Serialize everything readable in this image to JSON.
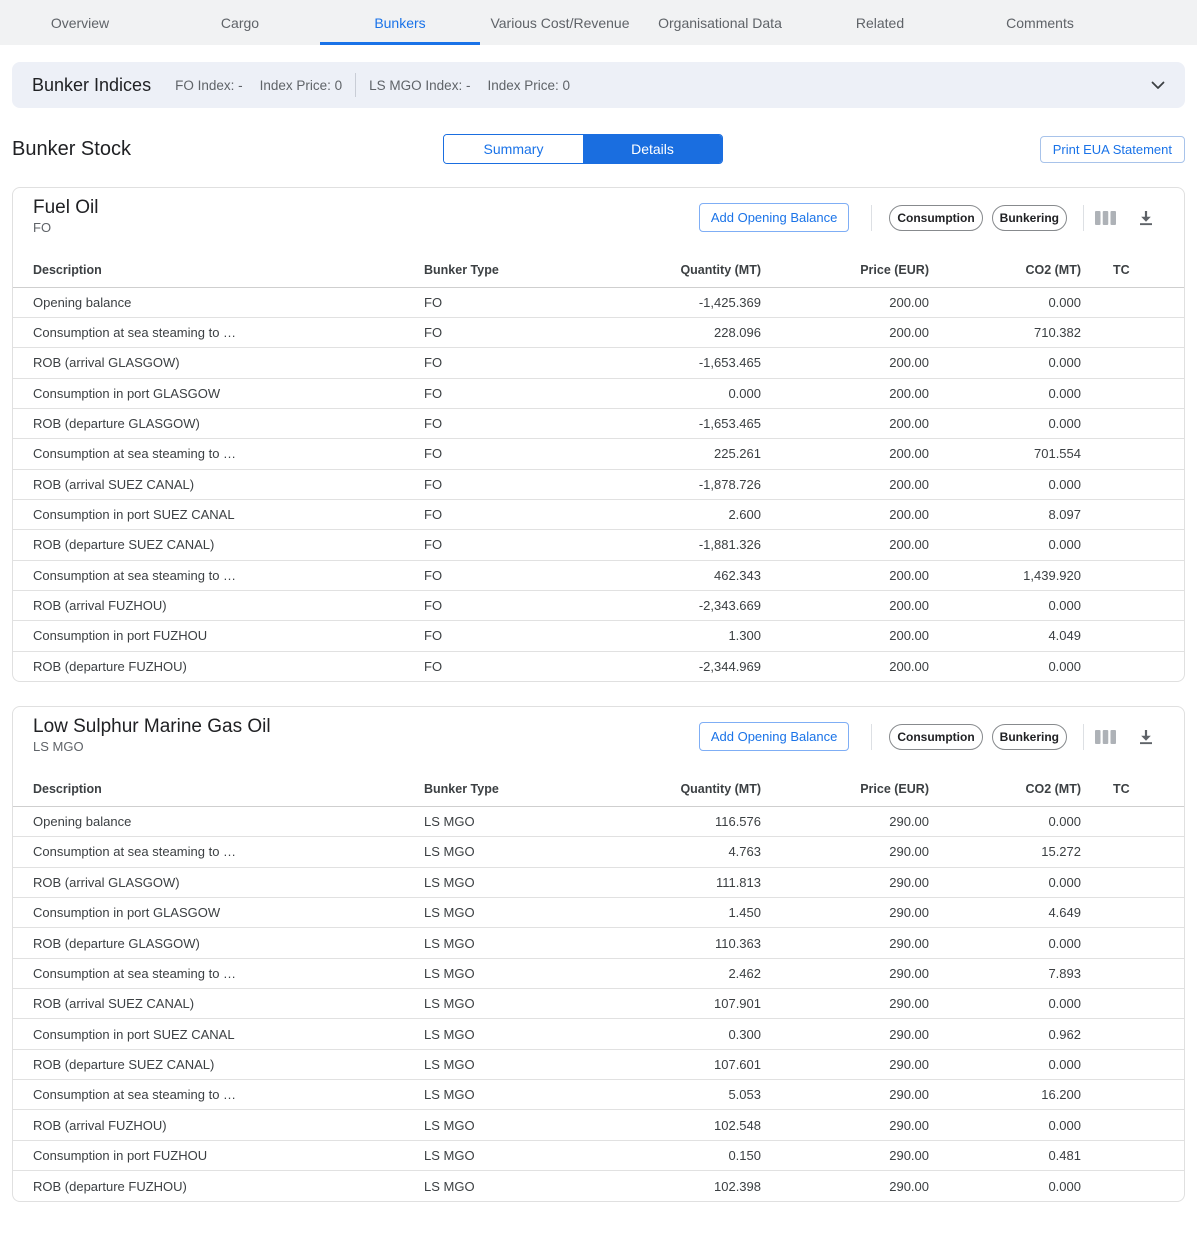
{
  "colors": {
    "accent": "#1a73e8",
    "details_fill": "#1a6ee0"
  },
  "tabs": [
    {
      "label": "Overview",
      "active": false
    },
    {
      "label": "Cargo",
      "active": false
    },
    {
      "label": "Bunkers",
      "active": true
    },
    {
      "label": "Various Cost/Revenue",
      "active": false
    },
    {
      "label": "Organisational Data",
      "active": false
    },
    {
      "label": "Related",
      "active": false
    },
    {
      "label": "Comments",
      "active": false
    }
  ],
  "indices": {
    "title": "Bunker Indices",
    "fo_index": "FO Index: -",
    "fo_price": "Index Price: 0",
    "mgo_index": "LS MGO Index: -",
    "mgo_price": "Index Price: 0"
  },
  "stock": {
    "title": "Bunker Stock",
    "summary_label": "Summary",
    "details_label": "Details",
    "selected": "Details",
    "print_label": "Print EUA Statement"
  },
  "columns": [
    "Description",
    "Bunker Type",
    "Quantity (MT)",
    "Price (EUR)",
    "CO2 (MT)",
    "TC"
  ],
  "cards": [
    {
      "title": "Fuel Oil",
      "subtitle": "FO",
      "add_button": "Add Opening Balance",
      "consumption_button": "Consumption",
      "bunkering_button": "Bunkering",
      "rows": [
        [
          "Opening balance",
          "FO",
          "-1,425.369",
          "200.00",
          "0.000",
          ""
        ],
        [
          "Consumption at sea steaming to …",
          "FO",
          "228.096",
          "200.00",
          "710.382",
          ""
        ],
        [
          "ROB (arrival GLASGOW)",
          "FO",
          "-1,653.465",
          "200.00",
          "0.000",
          ""
        ],
        [
          "Consumption in port GLASGOW",
          "FO",
          "0.000",
          "200.00",
          "0.000",
          ""
        ],
        [
          "ROB (departure GLASGOW)",
          "FO",
          "-1,653.465",
          "200.00",
          "0.000",
          ""
        ],
        [
          "Consumption at sea steaming to …",
          "FO",
          "225.261",
          "200.00",
          "701.554",
          ""
        ],
        [
          "ROB (arrival SUEZ CANAL)",
          "FO",
          "-1,878.726",
          "200.00",
          "0.000",
          ""
        ],
        [
          "Consumption in port SUEZ CANAL",
          "FO",
          "2.600",
          "200.00",
          "8.097",
          ""
        ],
        [
          "ROB (departure SUEZ CANAL)",
          "FO",
          "-1,881.326",
          "200.00",
          "0.000",
          ""
        ],
        [
          "Consumption at sea steaming to …",
          "FO",
          "462.343",
          "200.00",
          "1,439.920",
          ""
        ],
        [
          "ROB (arrival FUZHOU)",
          "FO",
          "-2,343.669",
          "200.00",
          "0.000",
          ""
        ],
        [
          "Consumption in port FUZHOU",
          "FO",
          "1.300",
          "200.00",
          "4.049",
          ""
        ],
        [
          "ROB (departure FUZHOU)",
          "FO",
          "-2,344.969",
          "200.00",
          "0.000",
          ""
        ]
      ]
    },
    {
      "title": "Low Sulphur Marine Gas Oil",
      "subtitle": "LS MGO",
      "add_button": "Add Opening Balance",
      "consumption_button": "Consumption",
      "bunkering_button": "Bunkering",
      "rows": [
        [
          "Opening balance",
          "LS MGO",
          "116.576",
          "290.00",
          "0.000",
          ""
        ],
        [
          "Consumption at sea steaming to …",
          "LS MGO",
          "4.763",
          "290.00",
          "15.272",
          ""
        ],
        [
          "ROB (arrival GLASGOW)",
          "LS MGO",
          "111.813",
          "290.00",
          "0.000",
          ""
        ],
        [
          "Consumption in port GLASGOW",
          "LS MGO",
          "1.450",
          "290.00",
          "4.649",
          ""
        ],
        [
          "ROB (departure GLASGOW)",
          "LS MGO",
          "110.363",
          "290.00",
          "0.000",
          ""
        ],
        [
          "Consumption at sea steaming to …",
          "LS MGO",
          "2.462",
          "290.00",
          "7.893",
          ""
        ],
        [
          "ROB (arrival SUEZ CANAL)",
          "LS MGO",
          "107.901",
          "290.00",
          "0.000",
          ""
        ],
        [
          "Consumption in port SUEZ CANAL",
          "LS MGO",
          "0.300",
          "290.00",
          "0.962",
          ""
        ],
        [
          "ROB (departure SUEZ CANAL)",
          "LS MGO",
          "107.601",
          "290.00",
          "0.000",
          ""
        ],
        [
          "Consumption at sea steaming to …",
          "LS MGO",
          "5.053",
          "290.00",
          "16.200",
          ""
        ],
        [
          "ROB (arrival FUZHOU)",
          "LS MGO",
          "102.548",
          "290.00",
          "0.000",
          ""
        ],
        [
          "Consumption in port FUZHOU",
          "LS MGO",
          "0.150",
          "290.00",
          "0.481",
          ""
        ],
        [
          "ROB (departure FUZHOU)",
          "LS MGO",
          "102.398",
          "290.00",
          "0.000",
          ""
        ]
      ]
    }
  ]
}
